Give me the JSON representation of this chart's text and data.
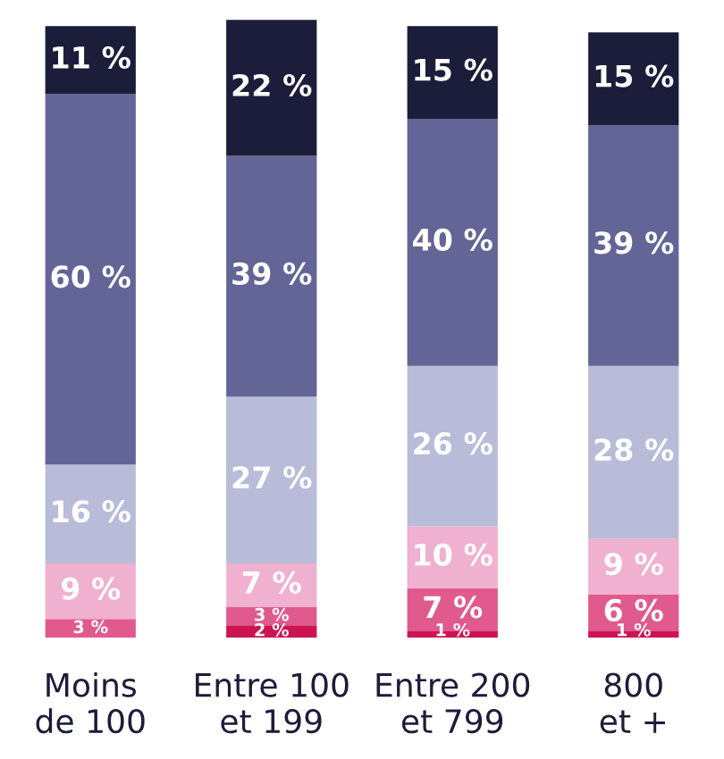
{
  "chart_data": {
    "type": "bar",
    "stacked": true,
    "categories": [
      "Moins\nde 100",
      "Entre 100\net 199",
      "Entre 200\net 799",
      "800\net +"
    ],
    "series": [
      {
        "color": "#cc1452",
        "values": [
          null,
          2,
          1,
          1
        ],
        "value_labels": [
          null,
          "2 %",
          "1 %",
          "1 %"
        ]
      },
      {
        "color": "#e05a8e",
        "values": [
          3,
          3,
          7,
          6
        ],
        "value_labels": [
          "3 %",
          "3 %",
          "7 %",
          "6 %"
        ]
      },
      {
        "color": "#f0b0cf",
        "values": [
          9,
          7,
          10,
          9
        ],
        "value_labels": [
          "9 %",
          "7 %",
          "10 %",
          "9 %"
        ]
      },
      {
        "color": "#b8bcd9",
        "values": [
          16,
          27,
          26,
          28
        ],
        "value_labels": [
          "16 %",
          "27 %",
          "26 %",
          "28 %"
        ]
      },
      {
        "color": "#636596",
        "values": [
          60,
          39,
          40,
          39
        ],
        "value_labels": [
          "60 %",
          "39 %",
          "40 %",
          "39 %"
        ]
      },
      {
        "color": "#1c1d3a",
        "values": [
          11,
          22,
          15,
          15
        ],
        "value_labels": [
          "11 %",
          "22 %",
          "15 %",
          "15 %"
        ]
      }
    ]
  }
}
